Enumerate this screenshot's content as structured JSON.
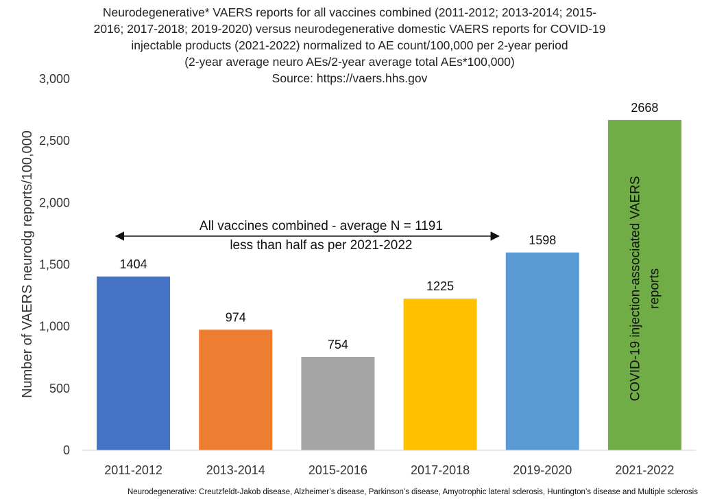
{
  "chart_data": {
    "type": "bar",
    "title_lines": [
      "Neurodegenerative* VAERS reports for all vaccines combined (2011-2012; 2013-2014; 2015-",
      "2016; 2017-2018; 2019-2020) versus neurodegenerative domestic VAERS reports for COVID-19",
      "injectable products (2021-2022) normalized to AE count/100,000 per 2-year period",
      "(2-year average neuro AEs/2-year average total AEs*100,000)",
      "Source: https://vaers.hhs.gov"
    ],
    "ylabel": "Number of VAERS neurodg reports/100,000",
    "xlabel": "",
    "ylim": [
      0,
      3000
    ],
    "yticks": [
      0,
      500,
      1000,
      1500,
      2000,
      2500,
      3000
    ],
    "ytick_labels": [
      "0",
      "500",
      "1,000",
      "1,500",
      "2,000",
      "2,500",
      "3,000"
    ],
    "grid": false,
    "categories": [
      "2011-2012",
      "2013-2014",
      "2015-2016",
      "2017-2018",
      "2019-2020",
      "2021-2022"
    ],
    "values": [
      1404,
      974,
      754,
      1225,
      1598,
      2668
    ],
    "value_labels": [
      "1404",
      "974",
      "754",
      "1225",
      "1598",
      "2668"
    ],
    "colors": [
      "#4472C4",
      "#ED7D31",
      "#A5A5A5",
      "#FFC000",
      "#5B9BD5",
      "#70AD47"
    ],
    "annotations": {
      "arrow_lines": [
        "All vaccines combined - average N = 1191",
        "less than half as per 2021-2022"
      ],
      "arrow_from_category": "2011-2012",
      "arrow_to_category": "2019-2020",
      "bar_text_lines": [
        "COVID-19 injection-associated VAERS",
        "reports"
      ],
      "bar_text_category": "2021-2022"
    },
    "footnote": "Neurodegenerative: Creutzfeldt-Jakob disease, Alzheimer’s disease, Parkinson’s disease, Amyotrophic lateral sclerosis, Huntington’s disease and Multiple sclerosis"
  }
}
